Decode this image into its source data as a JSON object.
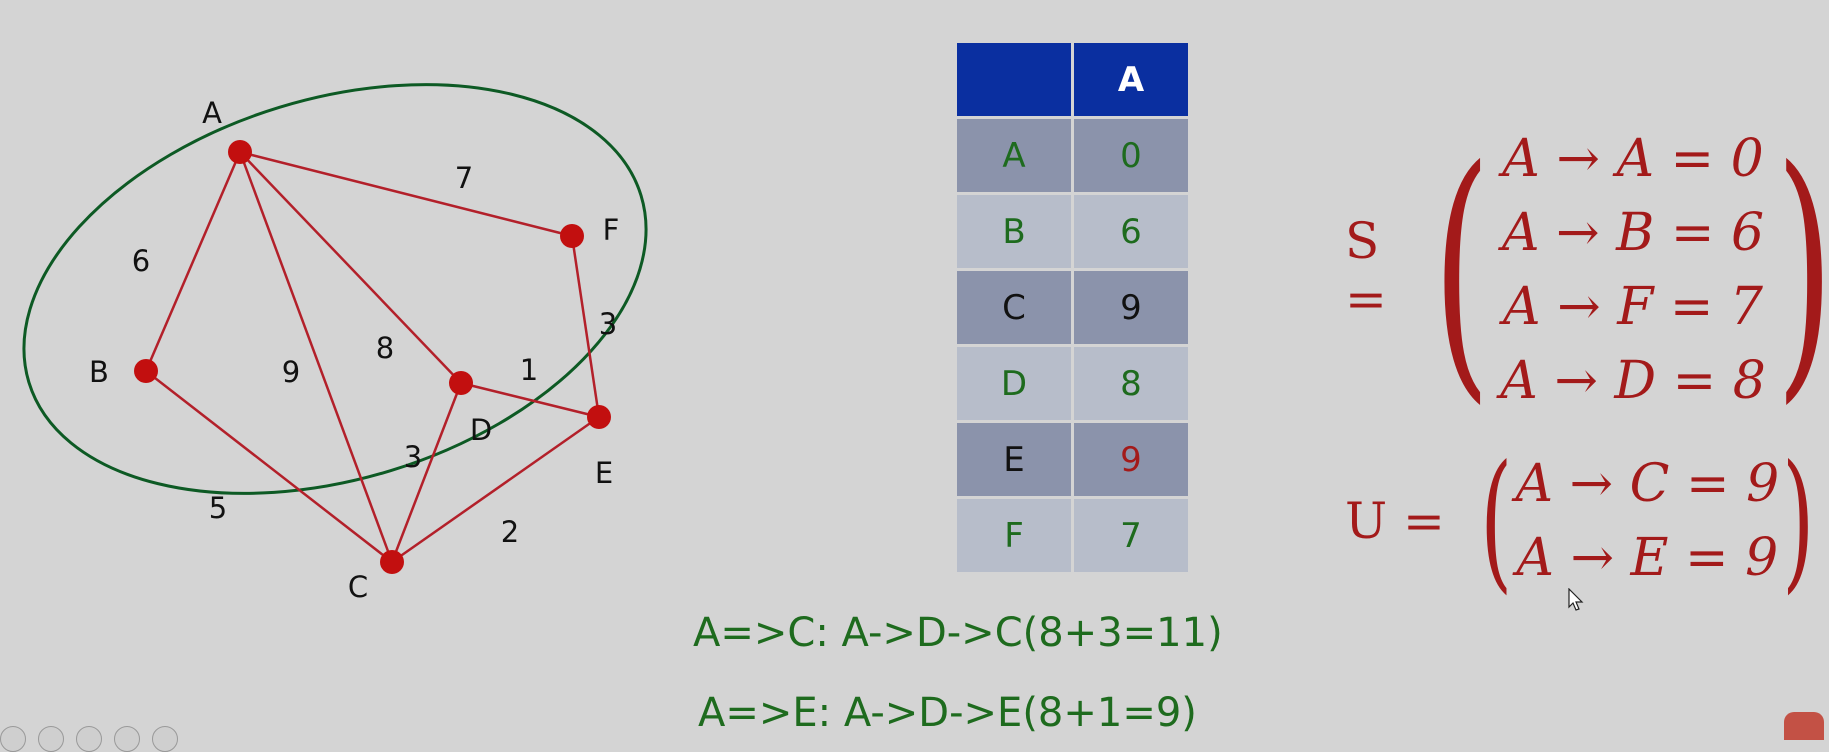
{
  "graph": {
    "nodes": [
      {
        "id": "A",
        "label": "A"
      },
      {
        "id": "B",
        "label": "B"
      },
      {
        "id": "C",
        "label": "C"
      },
      {
        "id": "D",
        "label": "D"
      },
      {
        "id": "E",
        "label": "E"
      },
      {
        "id": "F",
        "label": "F"
      }
    ],
    "edges": [
      {
        "from": "A",
        "to": "B",
        "weight": "6"
      },
      {
        "from": "A",
        "to": "F",
        "weight": "7"
      },
      {
        "from": "A",
        "to": "C",
        "weight": "9"
      },
      {
        "from": "A",
        "to": "D",
        "weight": "8"
      },
      {
        "from": "F",
        "to": "E",
        "weight": "3"
      },
      {
        "from": "D",
        "to": "E",
        "weight": "1"
      },
      {
        "from": "D",
        "to": "C",
        "weight": "3"
      },
      {
        "from": "B",
        "to": "C",
        "weight": "5"
      },
      {
        "from": "C",
        "to": "E",
        "weight": "2"
      }
    ],
    "colors": {
      "edge": "#b3202a",
      "node": "#c20f0f",
      "ellipse": "#0d5a24"
    }
  },
  "table": {
    "header": [
      "",
      "A"
    ],
    "rows": [
      {
        "node": "A",
        "dist": "0",
        "node_color": "#1e6b1e",
        "dist_color": "#1e6b1e"
      },
      {
        "node": "B",
        "dist": "6",
        "node_color": "#1e6b1e",
        "dist_color": "#1e6b1e"
      },
      {
        "node": "C",
        "dist": "9",
        "node_color": "#111111",
        "dist_color": "#111111"
      },
      {
        "node": "D",
        "dist": "8",
        "node_color": "#1e6b1e",
        "dist_color": "#1e6b1e"
      },
      {
        "node": "E",
        "dist": "9",
        "node_color": "#111111",
        "dist_color": "#a31a1a"
      },
      {
        "node": "F",
        "dist": "7",
        "node_color": "#1e6b1e",
        "dist_color": "#1e6b1e"
      }
    ]
  },
  "sets": {
    "S": {
      "name": "S =",
      "items": [
        "A → A = 0",
        "A → B = 6",
        "A → F = 7",
        "A → D = 8"
      ]
    },
    "U": {
      "name": "U =",
      "items": [
        "A → C = 9",
        "A → E = 9"
      ]
    }
  },
  "notes": {
    "line1": "A=>C: A->D->C(8+3=11)",
    "line2": "A=>E: A->D->E(8+1=9)"
  }
}
